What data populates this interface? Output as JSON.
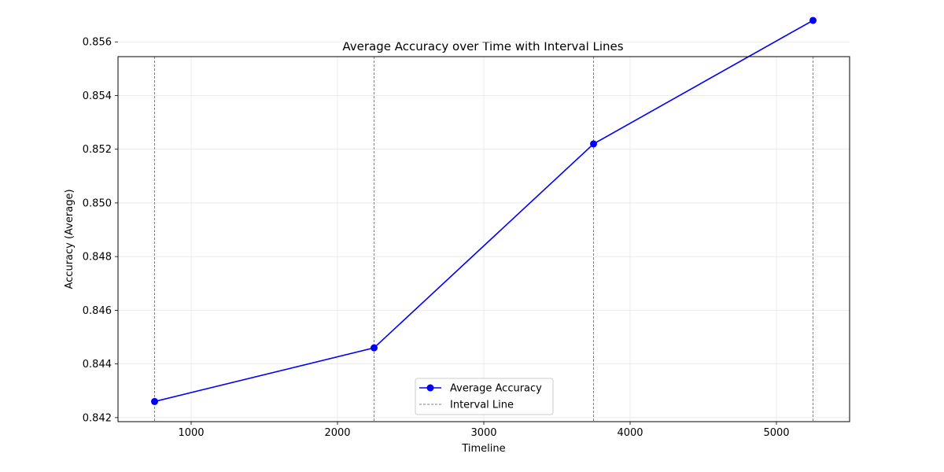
{
  "chart_data": {
    "type": "line",
    "title": "Average Accuracy over Time with Interval Lines",
    "xlabel": "Timeline",
    "ylabel": "Accuracy (Average)",
    "xlim": [
      500,
      5500
    ],
    "ylim": [
      0.84185,
      0.85545
    ],
    "xticks": [
      1000,
      2000,
      3000,
      4000,
      5000
    ],
    "xtick_labels": [
      "1000",
      "2000",
      "3000",
      "4000",
      "5000"
    ],
    "yticks": [
      0.842,
      0.844,
      0.846,
      0.848,
      0.85,
      0.852,
      0.854,
      0.856
    ],
    "ytick_labels": [
      "0.842",
      "0.844",
      "0.846",
      "0.848",
      "0.850",
      "0.852",
      "0.854",
      "0.856"
    ],
    "grid": true,
    "legend_position": "lower center",
    "series": [
      {
        "name": "Average Accuracy",
        "color": "#0000ff",
        "marker": "circle",
        "x": [
          750,
          2250,
          3750,
          5250
        ],
        "y": [
          0.8426,
          0.8446,
          0.8522,
          0.8568
        ]
      }
    ],
    "interval_lines": {
      "name": "Interval Line",
      "color": "#808080",
      "style": "dashed",
      "x": [
        750,
        2250,
        3750,
        5250
      ]
    }
  }
}
